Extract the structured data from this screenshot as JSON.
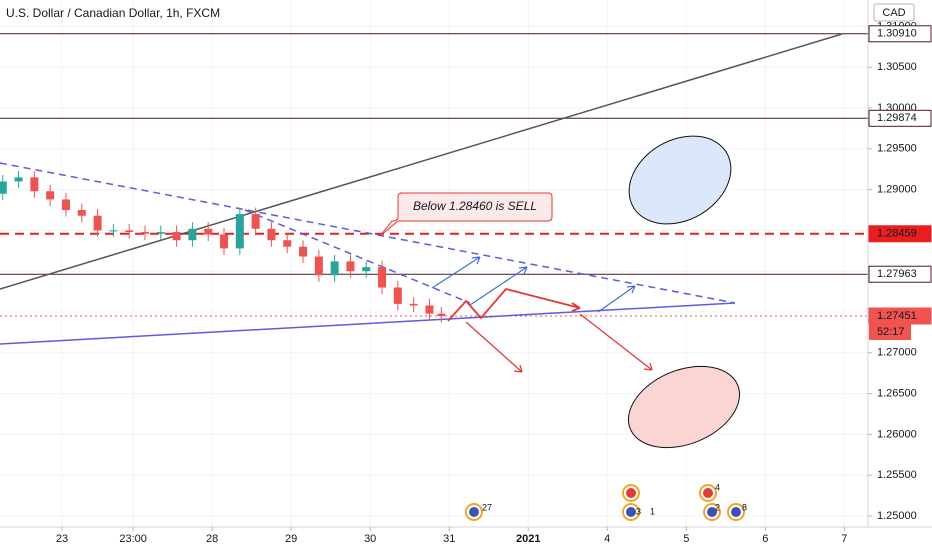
{
  "chart_data": {
    "type": "candlestick",
    "title": "U.S. Dollar / Canadian Dollar, 1h, FXCM",
    "currency": "CAD",
    "xlim": [
      -0.785,
      10.2
    ],
    "ylim": [
      1.24865,
      1.31324
    ],
    "xticks": [
      {
        "value": 0,
        "label": "23"
      },
      {
        "value": 0.9,
        "label": "23:00"
      },
      {
        "value": 1.9,
        "label": "28"
      },
      {
        "value": 2.9,
        "label": "29"
      },
      {
        "value": 3.9,
        "label": "30"
      },
      {
        "value": 4.9,
        "label": "31"
      },
      {
        "value": 5.9,
        "label": "2021"
      },
      {
        "value": 6.9,
        "label": "4"
      },
      {
        "value": 7.9,
        "label": "5"
      },
      {
        "value": 8.9,
        "label": "6"
      },
      {
        "value": 9.9,
        "label": "7"
      }
    ],
    "yticks": [
      {
        "value": 1.25,
        "label": "1.25000"
      },
      {
        "value": 1.255,
        "label": "1.25500"
      },
      {
        "value": 1.26,
        "label": "1.26000"
      },
      {
        "value": 1.265,
        "label": "1.26500"
      },
      {
        "value": 1.27,
        "label": "1.27000"
      },
      {
        "value": 1.275,
        "label": "1.27500"
      },
      {
        "value": 1.28,
        "label": "1.28000"
      },
      {
        "value": 1.285,
        "label": "1.28500"
      },
      {
        "value": 1.29,
        "label": "1.29000"
      },
      {
        "value": 1.295,
        "label": "1.29500"
      },
      {
        "value": 1.3,
        "label": "1.30000"
      },
      {
        "value": 1.305,
        "label": "1.30500"
      },
      {
        "value": 1.31,
        "label": "1.31000"
      }
    ],
    "up_color": "#26a69a",
    "down_color": "#ef5350",
    "x": [
      -0.75,
      -0.55,
      -0.35,
      -0.15,
      0.05,
      0.25,
      0.45,
      0.65,
      0.85,
      1.05,
      1.25,
      1.45,
      1.65,
      1.85,
      2.05,
      2.25,
      2.45,
      2.65,
      2.85,
      3.05,
      3.25,
      3.45,
      3.65,
      3.85,
      4.05,
      4.25,
      4.45,
      4.65,
      4.8
    ],
    "open": [
      1.2895,
      1.291,
      1.2915,
      1.2898,
      1.2888,
      1.2875,
      1.2868,
      1.285,
      1.285,
      1.2848,
      1.2846,
      1.2848,
      1.2838,
      1.2852,
      1.2845,
      1.2828,
      1.287,
      1.2852,
      1.2838,
      1.283,
      1.2818,
      1.2795,
      1.2812,
      1.28,
      1.2805,
      1.278,
      1.276,
      1.2758,
      1.2748
    ],
    "high": [
      1.2918,
      1.2923,
      1.2923,
      1.2906,
      1.2896,
      1.2883,
      1.2876,
      1.2858,
      1.2858,
      1.2856,
      1.2856,
      1.2856,
      1.286,
      1.286,
      1.2853,
      1.2878,
      1.2878,
      1.286,
      1.2846,
      1.2838,
      1.2826,
      1.282,
      1.282,
      1.2813,
      1.2813,
      1.2788,
      1.2768,
      1.2766,
      1.2756
    ],
    "low": [
      1.2887,
      1.2902,
      1.289,
      1.288,
      1.2867,
      1.286,
      1.2842,
      1.2842,
      1.284,
      1.2838,
      1.2838,
      1.283,
      1.283,
      1.2837,
      1.282,
      1.282,
      1.2844,
      1.283,
      1.2822,
      1.281,
      1.2787,
      1.2787,
      1.2792,
      1.2792,
      1.2772,
      1.2752,
      1.275,
      1.274,
      1.2737
    ],
    "close": [
      1.291,
      1.2915,
      1.2898,
      1.2888,
      1.2875,
      1.2868,
      1.285,
      1.285,
      1.2848,
      1.2846,
      1.2848,
      1.2838,
      1.2852,
      1.2845,
      1.2828,
      1.287,
      1.2852,
      1.2838,
      1.283,
      1.2818,
      1.2795,
      1.2812,
      1.28,
      1.2805,
      1.278,
      1.276,
      1.2758,
      1.2748,
      1.2745
    ],
    "levels": [
      {
        "value": 1.3091,
        "label": "1.30910",
        "color": "#4a1a2a",
        "style": "solid",
        "box": "outline"
      },
      {
        "value": 1.29874,
        "label": "1.29874",
        "color": "#4a1a2a",
        "style": "solid",
        "box": "outline"
      },
      {
        "value": 1.28459,
        "label": "1.28459",
        "color": "#e91e1e",
        "style": "dashed",
        "box": "filled"
      },
      {
        "value": 1.27963,
        "label": "1.27963",
        "color": "#4a1a2a",
        "style": "solid",
        "box": "outline"
      },
      {
        "value": 1.27451,
        "label": "1.27451",
        "color": "#f05350",
        "style": "dotted",
        "box": "filled"
      }
    ],
    "countdown": "52:17",
    "annotation": "Below 1.28460 is SELL",
    "events": [
      "27",
      "3",
      "1",
      "4",
      "2",
      "8"
    ]
  }
}
